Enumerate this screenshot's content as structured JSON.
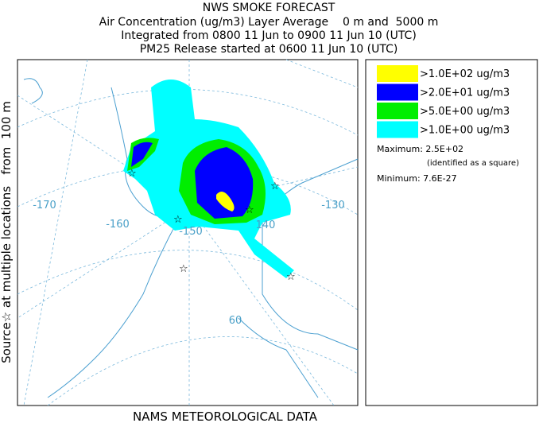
{
  "header": {
    "title": "NWS SMOKE FORECAST",
    "lines": [
      "Air Concentration (ug/m3) Layer Average    0 m and  5000 m",
      "Integrated from 0800 11 Jun to 0900 11 Jun 10 (UTC)",
      "PM25 Release started at 0600 11 Jun 10 (UTC)"
    ]
  },
  "side_label": "Source☆ at multiple locations   from  100 m",
  "map": {
    "graticule_labels": [
      "-170",
      "-160",
      "-150",
      "140",
      "-130",
      "60"
    ]
  },
  "legend": {
    "items": [
      {
        "label": ">1.0E+02 ug/m3",
        "color": "#ffff00"
      },
      {
        "label": ">2.0E+01 ug/m3",
        "color": "#0000ff"
      },
      {
        "label": ">5.0E+00 ug/m3",
        "color": "#00ee00"
      },
      {
        "label": ">1.0E+00 ug/m3",
        "color": "#00ffff"
      }
    ],
    "maximum": "Maximum: 2.5E+02",
    "maximum_note": "(identified as a square)",
    "minimum": "Minimum: 7.6E-27"
  },
  "footer": "NAMS METEOROLOGICAL DATA"
}
